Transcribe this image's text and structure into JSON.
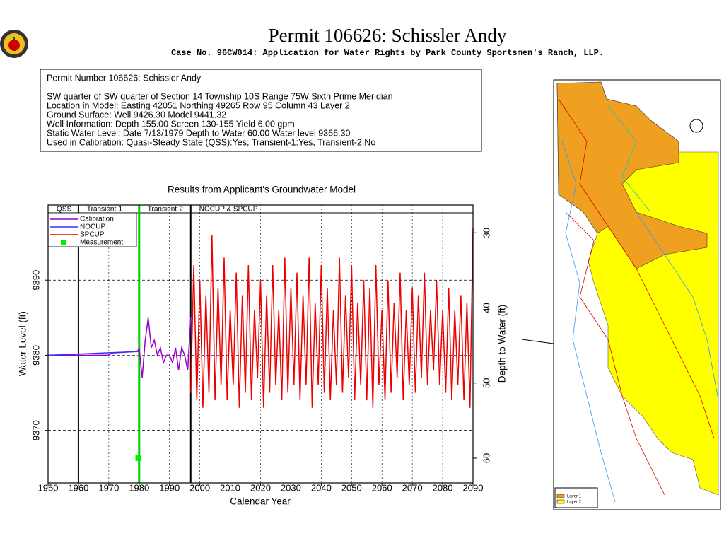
{
  "header": {
    "title": "Permit  106626:   Schissler Andy",
    "subtitle": "Case No. 96CW014: Application for Water Rights by Park County Sportsmen's Ranch, LLP."
  },
  "info": {
    "lines": [
      "Permit Number 106626: Schissler Andy",
      "SW quarter of SW quarter of Section 14 Township 10S Range 75W Sixth Prime Meridian",
      "Location in Model: Easting 42051 Northing   49265 Row   95 Column 43 Layer 2",
      "Ground Surface: Well  9426.30 Model  9441.32",
      "Well Information: Depth    155.00 Screen 130-155 Yield      6.00 gpm",
      "Static Water Level: Date  7/13/1979 Depth to Water      60.00 Water level  9366.30",
      "Used in Calibration: Quasi-Steady State (QSS):Yes, Transient-1:Yes, Transient-2:No"
    ]
  },
  "chart_data": {
    "type": "line",
    "title": "Results from Applicant's Groundwater Model",
    "x_label": "Calendar Year",
    "y_label": "Water Level (ft)",
    "y2_label": "Depth to Water (ft)",
    "xlim": [
      1950,
      2090
    ],
    "xticks": [
      1950,
      1960,
      1970,
      1980,
      1990,
      2000,
      2010,
      2020,
      2030,
      2040,
      2050,
      2060,
      2070,
      2080,
      2090
    ],
    "ylim": [
      9363,
      9400
    ],
    "yticks": [
      9370,
      9380,
      9390
    ],
    "y2lim": [
      26.3,
      63.3
    ],
    "y2ticks": [
      30,
      40,
      50,
      60
    ],
    "grid": true,
    "legend": "upper left",
    "periods": [
      {
        "label": "QSS",
        "start": 1950,
        "end": 1960,
        "color": "#000000"
      },
      {
        "label": "Transient-1",
        "start": 1960,
        "end": 1980,
        "color": "#00cc00"
      },
      {
        "label": "Transient-2",
        "start": 1980,
        "end": 1997,
        "color": "#000000"
      },
      {
        "label": "NOCUP  &  SPCUP",
        "start": 1997,
        "end": 2090,
        "color": "#000000"
      }
    ],
    "series": [
      {
        "name": "Calibration",
        "color": "#9900cc",
        "style": "line",
        "x": [
          1950,
          1970,
          1971,
          1979,
          1979.6,
          1980,
          1981,
          1982,
          1983,
          1984,
          1985,
          1986,
          1987,
          1988,
          1989,
          1990,
          1991,
          1992,
          1993,
          1994,
          1995,
          1996,
          1997
        ],
        "values": [
          9380,
          9380,
          9380.3,
          9380.5,
          9380.6,
          9381,
          9377,
          9382,
          9385,
          9381,
          9382,
          9380,
          9381,
          9379,
          9380,
          9380,
          9379,
          9381,
          9378,
          9381,
          9380,
          9378,
          9385
        ]
      },
      {
        "name": "NOCUP",
        "color": "#3333ff",
        "style": "line",
        "x": [
          1950,
          1980
        ],
        "values": [
          9380,
          9380.5
        ]
      },
      {
        "name": "SPCUP",
        "color": "#ee0000",
        "style": "line",
        "x": [
          1997,
          1998,
          1999,
          2000,
          2001,
          2002,
          2003,
          2004,
          2005,
          2006,
          2007,
          2008,
          2009,
          2010,
          2011,
          2012,
          2013,
          2014,
          2015,
          2016,
          2017,
          2018,
          2019,
          2020,
          2021,
          2022,
          2023,
          2024,
          2025,
          2026,
          2027,
          2028,
          2029,
          2030,
          2031,
          2032,
          2033,
          2034,
          2035,
          2036,
          2037,
          2038,
          2039,
          2040,
          2041,
          2042,
          2043,
          2044,
          2045,
          2046,
          2047,
          2048,
          2049,
          2050,
          2051,
          2052,
          2053,
          2054,
          2055,
          2056,
          2057,
          2058,
          2059,
          2060,
          2061,
          2062,
          2063,
          2064,
          2065,
          2066,
          2067,
          2068,
          2069,
          2070,
          2071,
          2072,
          2073,
          2074,
          2075,
          2076,
          2077,
          2078,
          2079,
          2080,
          2081,
          2082,
          2083,
          2084,
          2085,
          2086,
          2087,
          2088,
          2089,
          2090
        ],
        "values": [
          9375,
          9392,
          9374,
          9390,
          9373,
          9388,
          9375,
          9396,
          9374,
          9389,
          9376,
          9393,
          9374,
          9386,
          9376,
          9391,
          9373,
          9388,
          9375,
          9392,
          9374,
          9386,
          9377,
          9390,
          9373,
          9388,
          9375,
          9392,
          9376,
          9386,
          9374,
          9393,
          9375,
          9389,
          9376,
          9391,
          9374,
          9388,
          9376,
          9393,
          9373,
          9387,
          9376,
          9392,
          9375,
          9389,
          9374,
          9386,
          9376,
          9393,
          9375,
          9388,
          9377,
          9392,
          9374,
          9387,
          9376,
          9390,
          9374,
          9389,
          9373,
          9392,
          9376,
          9386,
          9374,
          9390,
          9375,
          9387,
          9377,
          9391,
          9374,
          9386,
          9376,
          9389,
          9375,
          9388,
          9377,
          9391,
          9376,
          9386,
          9378,
          9390,
          9376,
          9386,
          9375,
          9389,
          9374,
          9386,
          9376,
          9388,
          9374,
          9387,
          9373,
          9397
        ]
      },
      {
        "name": "Measurement",
        "color": "#00ee00",
        "style": "marker",
        "x": [
          1979.7
        ],
        "values": [
          9366.3
        ]
      }
    ]
  },
  "map": {
    "legend": [
      "Layer 1",
      "Layer 2"
    ]
  }
}
